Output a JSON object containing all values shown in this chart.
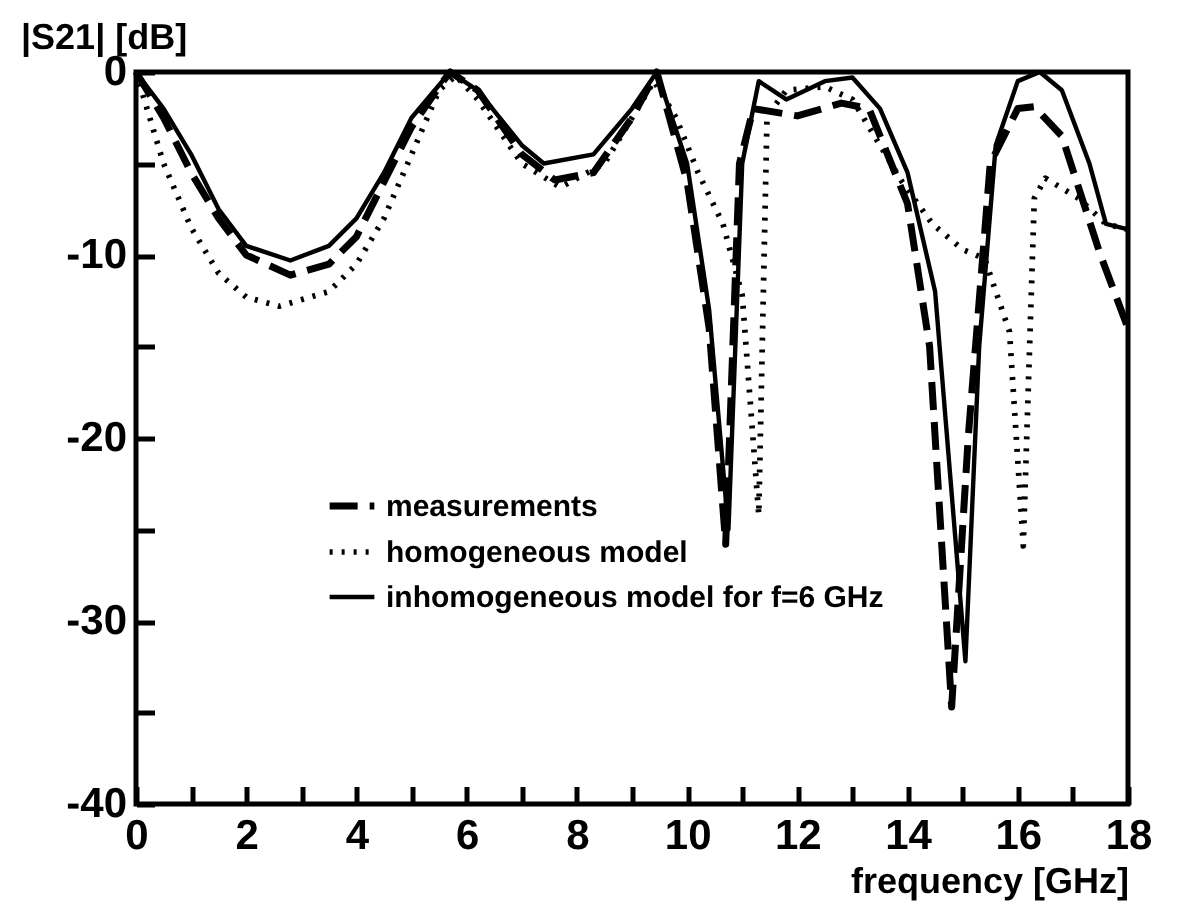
{
  "chart_data": {
    "type": "line",
    "xlabel": "frequency [GHz]",
    "ylabel": "|S21| [dB]",
    "xlim": [
      0,
      18
    ],
    "ylim": [
      -40,
      0
    ],
    "xticks": [
      0,
      {
        "value": 1,
        "label": null
      },
      2,
      {
        "value": 3,
        "label": null
      },
      4,
      {
        "value": 5,
        "label": null
      },
      6,
      {
        "value": 7,
        "label": null
      },
      8,
      {
        "value": 9,
        "label": null
      },
      10,
      {
        "value": 11,
        "label": null
      },
      12,
      {
        "value": 13,
        "label": null
      },
      14,
      {
        "value": 15,
        "label": null
      },
      16,
      {
        "value": 17,
        "label": null
      },
      18
    ],
    "yticks": [
      -40,
      {
        "value": -35,
        "label": null
      },
      -30,
      {
        "value": -25,
        "label": null
      },
      -20,
      {
        "value": -15,
        "label": null
      },
      -10,
      {
        "value": -5,
        "label": null
      },
      0
    ],
    "grid": false,
    "legend": "bottom left",
    "marker": "none",
    "series": [
      {
        "name": "measurements",
        "color": "#000000",
        "line_style": "dashed",
        "x": [
          0,
          0.5,
          1,
          1.5,
          2,
          2.8,
          3.5,
          4,
          4.5,
          5,
          5.5,
          5.7,
          6.2,
          7,
          7.6,
          8.3,
          9,
          9.45,
          10,
          10.4,
          10.7,
          10.95,
          11.2,
          12,
          12.8,
          13.3,
          14,
          14.4,
          14.8,
          15.1,
          15.5,
          16,
          16.3,
          16.8,
          17.5,
          18
        ],
        "values": [
          0,
          -2.5,
          -5.5,
          -8,
          -10,
          -11.1,
          -10.5,
          -9,
          -6,
          -3,
          -0.8,
          0,
          -1,
          -4.5,
          -5.9,
          -5.5,
          -2.5,
          0,
          -6,
          -14,
          -25.8,
          -5,
          -2,
          -2.4,
          -1.7,
          -2,
          -7.2,
          -15,
          -34.7,
          -20,
          -5,
          -2,
          -1.9,
          -3.5,
          -10,
          -14
        ]
      },
      {
        "name": "homogeneous model",
        "color": "#000000",
        "line_style": "dotted",
        "x": [
          0,
          0.3,
          0.5,
          1,
          1.5,
          2,
          2.6,
          3.5,
          4,
          4.5,
          5,
          5.5,
          5.8,
          6.2,
          7,
          7.7,
          8.5,
          9,
          9.4,
          9.8,
          10.2,
          10.65,
          11,
          11.3,
          11.45,
          11.8,
          12.5,
          13,
          13.5,
          13.9,
          14.45,
          15,
          15.4,
          15.85,
          16.1,
          16.3,
          16.5,
          17.1,
          17.6,
          18
        ],
        "values": [
          0,
          -3,
          -5,
          -8.5,
          -11,
          -12.3,
          -12.8,
          -12,
          -10.5,
          -8,
          -4.5,
          -1,
          -0.2,
          -1.5,
          -5,
          -6.3,
          -5,
          -2.5,
          -0.5,
          -2.5,
          -5.5,
          -8.3,
          -12.2,
          -24.2,
          -2.4,
          -1,
          -0.8,
          -1.5,
          -4,
          -6,
          -8.3,
          -9.7,
          -10.2,
          -14.2,
          -25.9,
          -6.9,
          -5.8,
          -6.9,
          -8.3,
          -8.6
        ]
      },
      {
        "name": "inhomogeneous model for f=6 GHz",
        "color": "#000000",
        "line_style": "solid",
        "x": [
          0,
          0.5,
          1,
          1.5,
          2,
          2.8,
          3.5,
          4,
          4.5,
          5,
          5.7,
          6.2,
          7,
          7.4,
          8.3,
          9,
          9.45,
          10,
          10.4,
          10.75,
          11,
          11.3,
          11.8,
          12.5,
          13,
          13.5,
          14,
          14.5,
          15.05,
          15.3,
          15.6,
          16,
          16.4,
          16.8,
          17.3,
          17.6,
          18
        ],
        "values": [
          0,
          -2,
          -4.5,
          -7.5,
          -9.5,
          -10.3,
          -9.5,
          -8,
          -5.5,
          -2.5,
          0,
          -1,
          -4,
          -5,
          -4.5,
          -2,
          0,
          -5,
          -13,
          -25,
          -5,
          -0.5,
          -1.5,
          -0.5,
          -0.3,
          -2,
          -5.5,
          -12,
          -32.2,
          -15,
          -4,
          -0.5,
          0,
          -1,
          -5,
          -8.3,
          -8.6
        ]
      }
    ]
  }
}
